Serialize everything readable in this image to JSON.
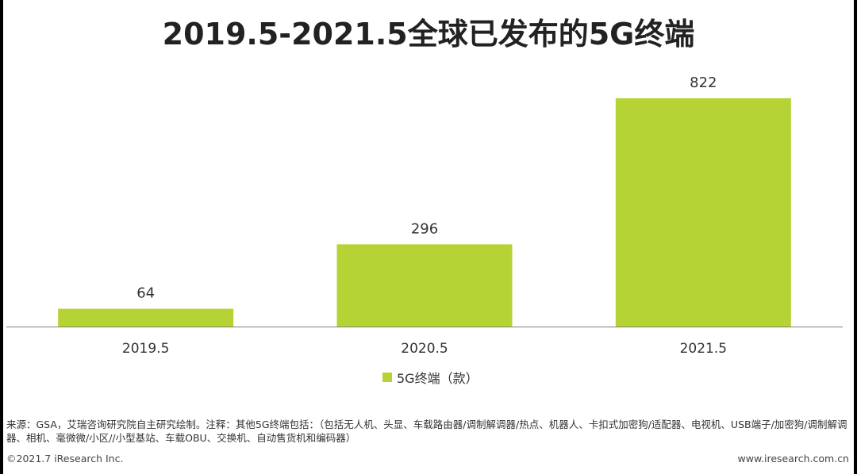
{
  "title": "2019.5-2021.5全球已发布的5G终端",
  "chart_data": {
    "type": "bar",
    "categories": [
      "2019.5",
      "2020.5",
      "2021.5"
    ],
    "series": [
      {
        "name": "5G终端（款）",
        "values": [
          64,
          296,
          822
        ]
      }
    ],
    "ylim": [
      0,
      822
    ],
    "grid": false,
    "legend_position": "bottom",
    "bar_color": "#b5d334"
  },
  "legend": {
    "label": "5G终端（款）"
  },
  "source": "来源：GSA，艾瑞咨询研究院自主研究绘制。注释：其他5G终端包括：（包括无人机、头显、车载路由器/调制解调器/热点、机器人、卡扣式加密狗/适配器、电视机、USB端子/加密狗/调制解调器、相机、毫微微/小区//小型基站、车载OBU、交换机、自动售货机和编码器）",
  "footer": {
    "copyright": "©2021.7 iResearch Inc.",
    "website": "www.iresearch.com.cn"
  }
}
